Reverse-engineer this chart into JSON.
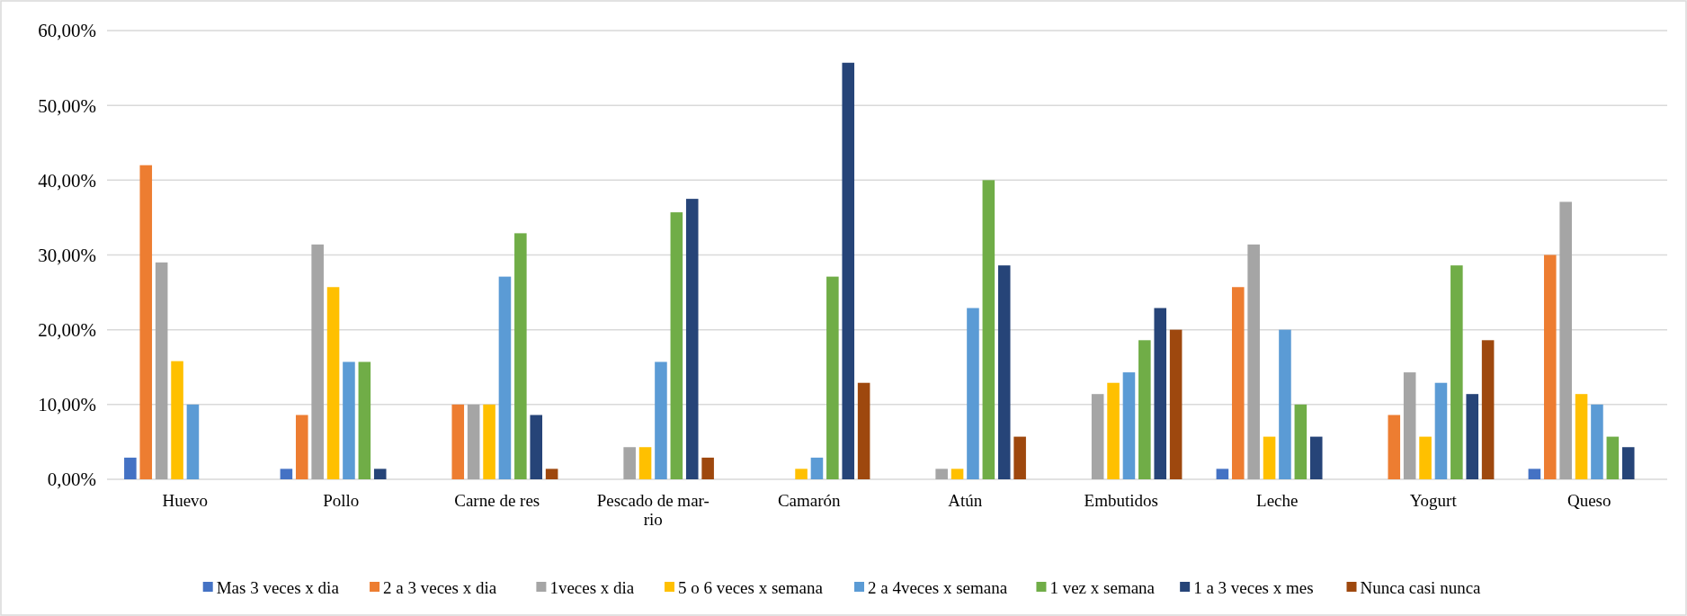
{
  "chart_data": {
    "type": "bar",
    "categories": [
      "Huevo",
      "Pollo",
      "Carne de res",
      "Pescado de mar-rio",
      "Camarón",
      "Atún",
      "Embutidos",
      "Leche",
      "Yogurt",
      "Queso"
    ],
    "series": [
      {
        "name": "Mas 3 veces x dia",
        "color": "#4472c4",
        "values": [
          2.9,
          1.4,
          0,
          0,
          0,
          0,
          0,
          1.4,
          0,
          1.4
        ]
      },
      {
        "name": "2 a 3 veces x dia",
        "color": "#ed7d31",
        "values": [
          42,
          8.6,
          10,
          0,
          0,
          0,
          0,
          25.7,
          8.6,
          30
        ]
      },
      {
        "name": "1veces x dia",
        "color": "#a5a5a5",
        "values": [
          29,
          31.4,
          10,
          4.3,
          0,
          1.4,
          11.4,
          31.4,
          14.3,
          37.1
        ]
      },
      {
        "name": "5 o 6 veces x semana",
        "color": "#ffc000",
        "values": [
          15.8,
          25.7,
          10,
          4.3,
          1.4,
          1.4,
          12.9,
          5.7,
          5.7,
          11.4
        ]
      },
      {
        "name": "2 a 4veces x semana",
        "color": "#5b9bd5",
        "values": [
          10,
          15.7,
          27.1,
          15.7,
          2.9,
          22.9,
          14.3,
          20,
          12.9,
          10
        ]
      },
      {
        "name": "1 vez x semana",
        "color": "#70ad47",
        "values": [
          0,
          15.7,
          32.9,
          35.7,
          27.1,
          40,
          18.6,
          10,
          28.6,
          5.7
        ]
      },
      {
        "name": "1 a 3 veces x mes",
        "color": "#264478",
        "values": [
          0,
          1.4,
          8.6,
          37.5,
          55.7,
          28.6,
          22.9,
          5.7,
          11.4,
          4.3
        ]
      },
      {
        "name": "Nunca casi nunca",
        "color": "#9e480e",
        "values": [
          0,
          0,
          1.4,
          2.9,
          12.9,
          5.7,
          20,
          0,
          18.6,
          0
        ]
      }
    ],
    "ylim": [
      0,
      60
    ],
    "yticks": [
      {
        "value": 0,
        "label": "0,00%"
      },
      {
        "value": 10,
        "label": "10,00%"
      },
      {
        "value": 20,
        "label": "20,00%"
      },
      {
        "value": 30,
        "label": "30,00%"
      },
      {
        "value": 40,
        "label": "40,00%"
      },
      {
        "value": 50,
        "label": "50,00%"
      },
      {
        "value": 60,
        "label": "60,00%"
      }
    ],
    "grid": "y",
    "legend": "bottom"
  }
}
